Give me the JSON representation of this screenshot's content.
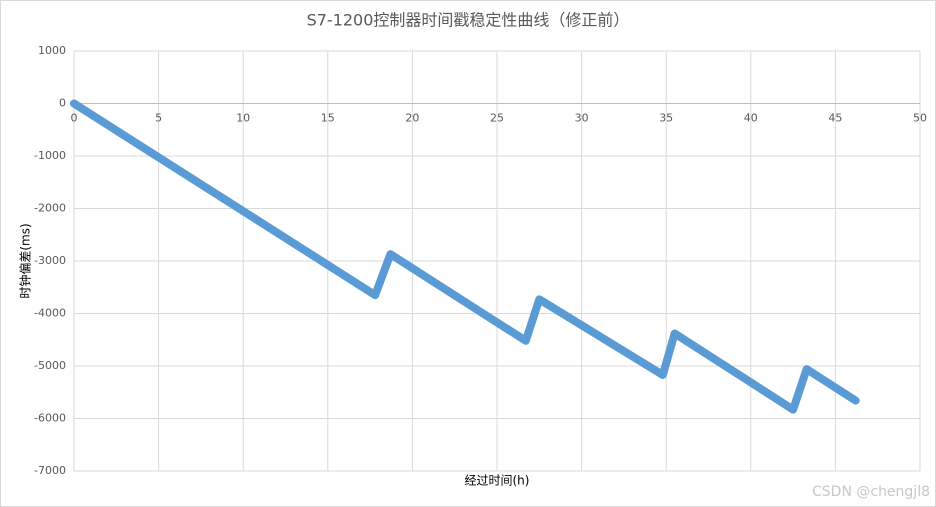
{
  "chart_data": {
    "type": "line",
    "title": "S7-1200控制器时间戳稳定性曲线（修正前）",
    "x_label": "经过时间(h)",
    "y_label": "时钟偏差(ms)",
    "watermark": "CSDN @chengjl8",
    "series": [
      {
        "name": "时钟偏差",
        "color": "#5b9bd5",
        "x": [
          0,
          17.8,
          18.7,
          26.7,
          27.5,
          34.8,
          35.5,
          42.5,
          43.3,
          46.2
        ],
        "values": [
          0,
          -3650,
          -2870,
          -4520,
          -3730,
          -5170,
          -4380,
          -5830,
          -5060,
          -5660
        ]
      }
    ],
    "xlim": [
      0,
      50
    ],
    "xticks": [
      0,
      5,
      10,
      15,
      20,
      25,
      30,
      35,
      40,
      45,
      50
    ],
    "ylim": [
      -7000,
      1000
    ],
    "yticks": [
      -7000,
      -6000,
      -5000,
      -4000,
      -3000,
      -2000,
      -1000,
      0,
      1000
    ],
    "grid": true
  }
}
